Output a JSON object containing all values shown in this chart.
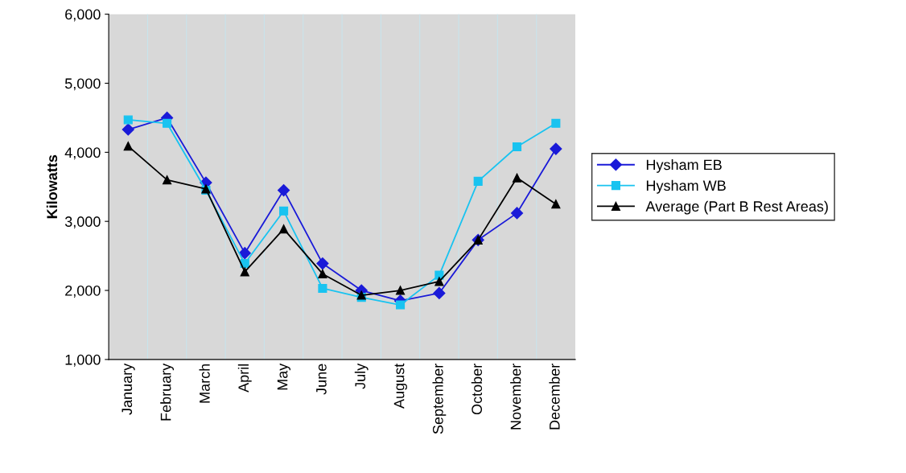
{
  "chart_data": {
    "type": "line",
    "ylabel": "Kilowatts",
    "categories": [
      "January",
      "February",
      "March",
      "April",
      "May",
      "June",
      "July",
      "August",
      "September",
      "October",
      "November",
      "December"
    ],
    "series": [
      {
        "name": "Hysham EB",
        "color": "#1a1ad8",
        "marker": "diamond",
        "values": [
          4330,
          4500,
          3560,
          2540,
          3450,
          2390,
          2000,
          1850,
          1960,
          2730,
          3120,
          4050
        ]
      },
      {
        "name": "Hysham WB",
        "color": "#19c3f0",
        "marker": "square",
        "values": [
          4470,
          4420,
          3450,
          2390,
          3150,
          2030,
          1900,
          1790,
          2220,
          3580,
          4080,
          4420
        ]
      },
      {
        "name": "Average (Part B Rest Areas)",
        "color": "#000000",
        "marker": "triangle",
        "values": [
          4090,
          3600,
          3470,
          2270,
          2890,
          2240,
          1930,
          2000,
          2130,
          2730,
          3630,
          3250
        ]
      }
    ],
    "ylim": [
      1000,
      6000
    ],
    "yticks": [
      {
        "value": 1000,
        "label": "1,000"
      },
      {
        "value": 2000,
        "label": "2,000"
      },
      {
        "value": 3000,
        "label": "3,000"
      },
      {
        "value": 4000,
        "label": "4,000"
      },
      {
        "value": 5000,
        "label": "5,000"
      },
      {
        "value": 6000,
        "label": "6,000"
      }
    ],
    "grid": "x",
    "legend": "right",
    "line_style": "solid"
  }
}
